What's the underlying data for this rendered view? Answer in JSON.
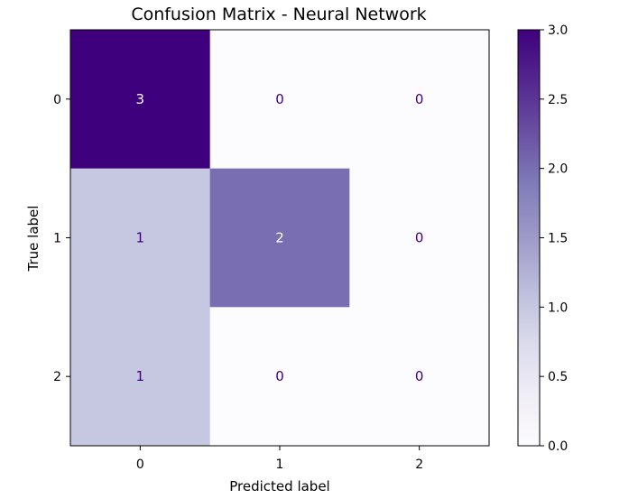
{
  "chart_data": {
    "type": "heatmap",
    "title": "Confusion Matrix - Neural Network",
    "xlabel": "Predicted label",
    "ylabel": "True label",
    "x_categories": [
      "0",
      "1",
      "2"
    ],
    "y_categories": [
      "0",
      "1",
      "2"
    ],
    "matrix": [
      [
        3,
        0,
        0
      ],
      [
        1,
        2,
        0
      ],
      [
        1,
        0,
        0
      ]
    ],
    "cell_labels": [
      [
        "3",
        "0",
        "0"
      ],
      [
        "1",
        "2",
        "0"
      ],
      [
        "1",
        "0",
        "0"
      ]
    ],
    "colormap": "Purples",
    "vmin": 0,
    "vmax": 3,
    "colorbar": {
      "ticks": [
        0.0,
        0.5,
        1.0,
        1.5,
        2.0,
        2.5,
        3.0
      ],
      "tick_labels": [
        "0.0",
        "0.5",
        "1.0",
        "1.5",
        "2.0",
        "2.5",
        "3.0"
      ]
    },
    "colors": {
      "low": "#fcfbfd",
      "high": "#3f007d",
      "text_light": "#ffffff",
      "text_dark": "#3f007d"
    }
  }
}
